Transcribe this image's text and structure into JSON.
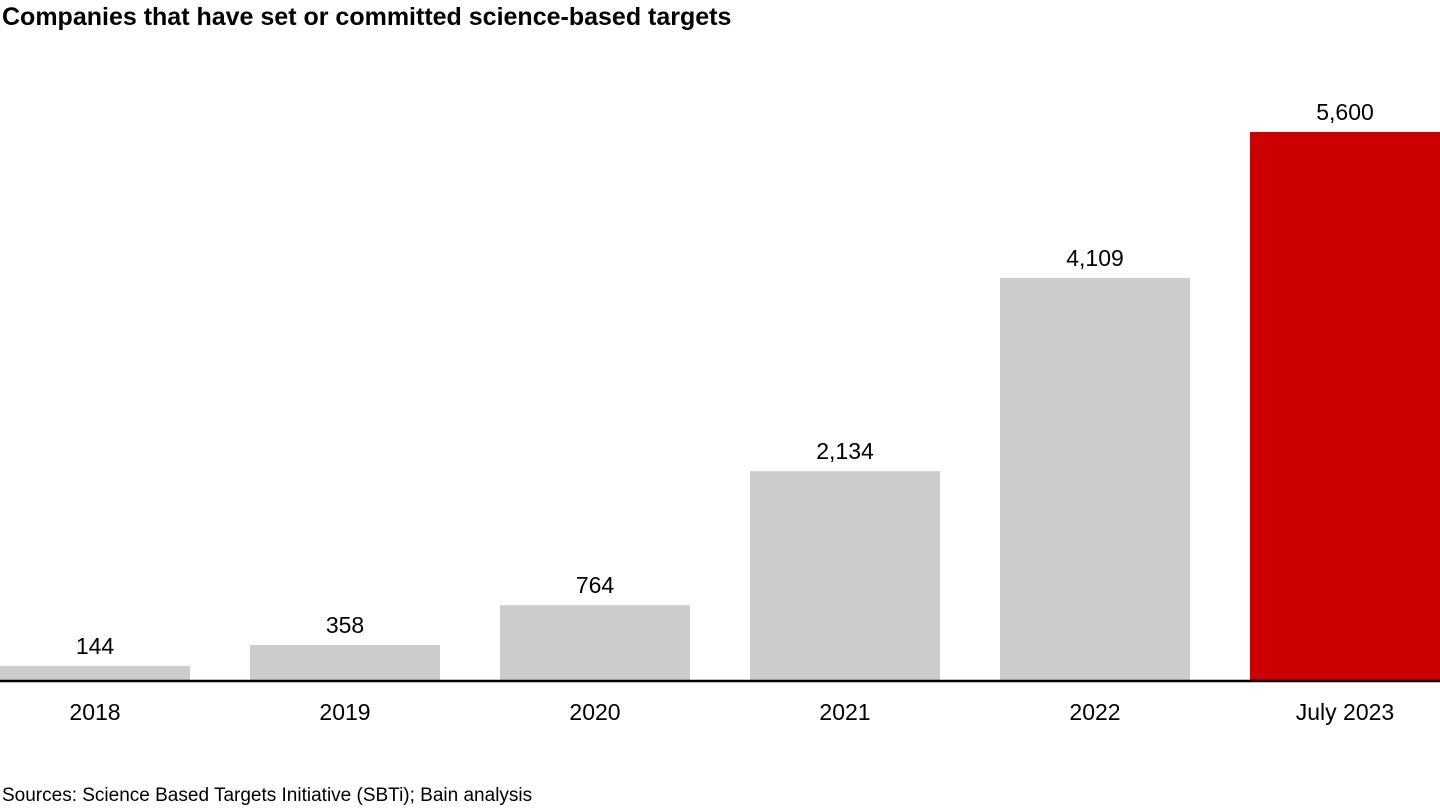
{
  "chart_data": {
    "type": "bar",
    "title": "Companies that have set or committed science-based targets",
    "categories": [
      "2018",
      "2019",
      "2020",
      "2021",
      "2022",
      "July 2023"
    ],
    "values": [
      144,
      358,
      764,
      2134,
      4109,
      5600
    ],
    "data_labels": [
      "144",
      "358",
      "764",
      "2,134",
      "4,109",
      "5,600"
    ],
    "highlight_index": 5,
    "colors": {
      "bar": "#cccccc",
      "highlight": "#cc0000",
      "axis": "#000000"
    },
    "ylim": [
      0,
      5600
    ],
    "xlabel": "",
    "ylabel": "",
    "grid": false,
    "legend": "none"
  },
  "footer": {
    "source": "Sources: Science Based Targets Initiative (SBTi); Bain analysis"
  }
}
